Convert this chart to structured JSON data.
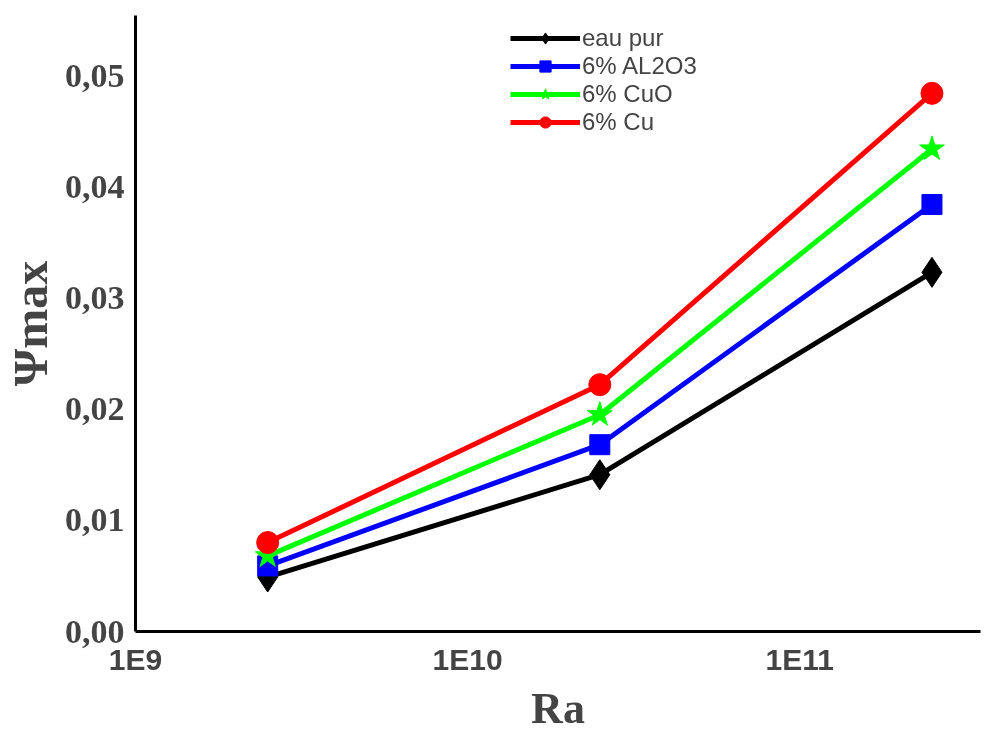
{
  "chart_data": {
    "type": "line",
    "xlabel": "Ra",
    "ylabel": "Ψmax",
    "log": "x",
    "x": [
      2500000000.0,
      25000000000.0,
      250000000000.0
    ],
    "xlim": [
      1000000000.0,
      350000000000.0
    ],
    "xticks": [
      {
        "value": 1000000000.0,
        "label": "1E9"
      },
      {
        "value": 10000000000.0,
        "label": "1E10"
      },
      {
        "value": 100000000000.0,
        "label": "1E11"
      }
    ],
    "ylim": [
      0,
      0.0554
    ],
    "yticks": [
      {
        "value": 0,
        "label": "0,00"
      },
      {
        "value": 0.01,
        "label": "0,01"
      },
      {
        "value": 0.02,
        "label": "0,02"
      },
      {
        "value": 0.03,
        "label": "0,03"
      },
      {
        "value": 0.04,
        "label": "0,04"
      },
      {
        "value": 0.05,
        "label": "0,05"
      }
    ],
    "grid": false,
    "legend": "top right",
    "line_style": "solid",
    "series": [
      {
        "name": "eau pur",
        "color": "#000000",
        "marker": "diamond",
        "values": [
          0.0049,
          0.0141,
          0.0323
        ]
      },
      {
        "name": "6% AL2O3",
        "color": "#0000ff",
        "marker": "square",
        "values": [
          0.0059,
          0.0168,
          0.0384
        ]
      },
      {
        "name": "6% CuO",
        "color": "#00ff00",
        "marker": "star",
        "values": [
          0.0068,
          0.0195,
          0.0434
        ]
      },
      {
        "name": "6% Cu",
        "color": "#ff0000",
        "marker": "circle",
        "values": [
          0.008,
          0.0222,
          0.0484
        ]
      }
    ]
  }
}
